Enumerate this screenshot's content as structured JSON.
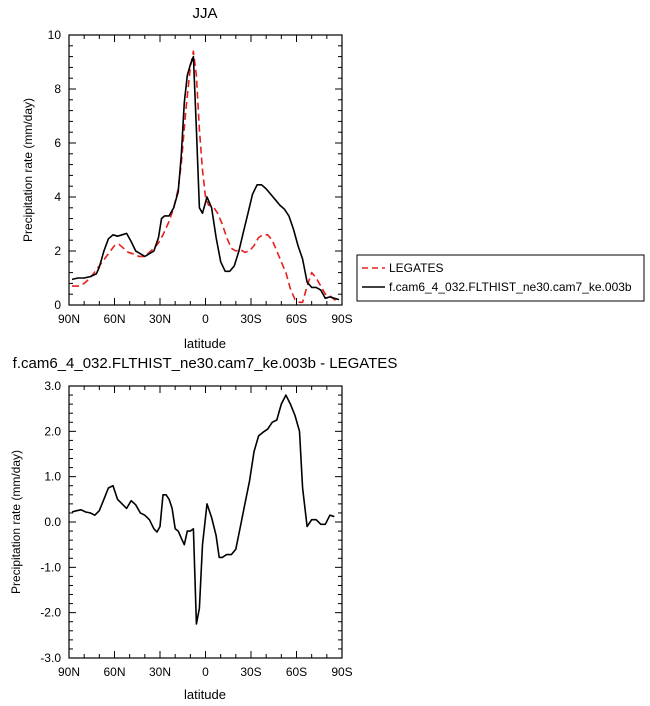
{
  "chart_data": [
    {
      "type": "line",
      "title": "JJA",
      "xlabel": "latitude",
      "ylabel": "Precipitation rate (mm/day)",
      "xlim": [
        -90,
        90
      ],
      "ylim": [
        0,
        10
      ],
      "x_ticks": [
        -90,
        -60,
        -30,
        0,
        30,
        60,
        90
      ],
      "x_tick_labels": [
        "90N",
        "60N",
        "30N",
        "0",
        "30S",
        "60S",
        "90S"
      ],
      "y_ticks": [
        0,
        2,
        4,
        6,
        8,
        10
      ],
      "y_tick_labels": [
        "0",
        "2",
        "4",
        "6",
        "8",
        "10"
      ],
      "legend_position": "right",
      "series": [
        {
          "name": "LEGATES",
          "color": "#e8201c",
          "dash": "dashed",
          "points": [
            [
              -88,
              0.7
            ],
            [
              -84,
              0.7
            ],
            [
              -80,
              0.8
            ],
            [
              -76,
              1.0
            ],
            [
              -72,
              1.3
            ],
            [
              -68,
              1.6
            ],
            [
              -64,
              1.9
            ],
            [
              -60,
              2.2
            ],
            [
              -57,
              2.25
            ],
            [
              -54,
              2.1
            ],
            [
              -51,
              1.95
            ],
            [
              -48,
              1.9
            ],
            [
              -44,
              1.8
            ],
            [
              -40,
              1.8
            ],
            [
              -37,
              1.95
            ],
            [
              -34,
              2.1
            ],
            [
              -31,
              2.3
            ],
            [
              -28,
              2.6
            ],
            [
              -24,
              3.1
            ],
            [
              -21,
              3.6
            ],
            [
              -18,
              4.3
            ],
            [
              -16,
              5.2
            ],
            [
              -13,
              7.2
            ],
            [
              -10,
              8.8
            ],
            [
              -8,
              9.4
            ],
            [
              -6,
              8.5
            ],
            [
              -4,
              6.5
            ],
            [
              -2,
              5.0
            ],
            [
              0,
              4.0
            ],
            [
              2,
              3.7
            ],
            [
              5,
              3.65
            ],
            [
              8,
              3.4
            ],
            [
              11,
              3.0
            ],
            [
              14,
              2.5
            ],
            [
              17,
              2.1
            ],
            [
              20,
              2.0
            ],
            [
              23,
              2.05
            ],
            [
              26,
              1.95
            ],
            [
              29,
              2.0
            ],
            [
              32,
              2.2
            ],
            [
              35,
              2.5
            ],
            [
              38,
              2.6
            ],
            [
              41,
              2.6
            ],
            [
              44,
              2.4
            ],
            [
              47,
              2.0
            ],
            [
              50,
              1.6
            ],
            [
              53,
              1.2
            ],
            [
              56,
              0.6
            ],
            [
              59,
              0.2
            ],
            [
              62,
              0.1
            ],
            [
              64,
              0.1
            ],
            [
              67,
              0.7
            ],
            [
              70,
              1.2
            ],
            [
              73,
              1.0
            ],
            [
              76,
              0.7
            ],
            [
              79,
              0.4
            ],
            [
              82,
              0.35
            ],
            [
              85,
              0.2
            ],
            [
              88,
              0.1
            ]
          ]
        },
        {
          "name": "f.cam6_4_032.FLTHIST_ne30.cam7_ke.003b",
          "color": "#000000",
          "dash": "solid",
          "points": [
            [
              -88,
              0.95
            ],
            [
              -84,
              1.0
            ],
            [
              -80,
              1.0
            ],
            [
              -76,
              1.05
            ],
            [
              -72,
              1.15
            ],
            [
              -70,
              1.4
            ],
            [
              -67,
              2.0
            ],
            [
              -64,
              2.45
            ],
            [
              -61,
              2.6
            ],
            [
              -58,
              2.55
            ],
            [
              -55,
              2.6
            ],
            [
              -52,
              2.65
            ],
            [
              -49,
              2.35
            ],
            [
              -46,
              2.0
            ],
            [
              -43,
              1.9
            ],
            [
              -40,
              1.8
            ],
            [
              -37,
              1.9
            ],
            [
              -34,
              2.0
            ],
            [
              -31,
              2.5
            ],
            [
              -29,
              3.2
            ],
            [
              -27,
              3.3
            ],
            [
              -24,
              3.3
            ],
            [
              -21,
              3.6
            ],
            [
              -18,
              4.2
            ],
            [
              -16,
              5.5
            ],
            [
              -14,
              7.5
            ],
            [
              -12,
              8.5
            ],
            [
              -10,
              8.9
            ],
            [
              -8,
              9.2
            ],
            [
              -6,
              6.5
            ],
            [
              -4,
              3.6
            ],
            [
              -2,
              3.4
            ],
            [
              1,
              4.0
            ],
            [
              4,
              3.6
            ],
            [
              7,
              2.5
            ],
            [
              10,
              1.6
            ],
            [
              13,
              1.25
            ],
            [
              16,
              1.25
            ],
            [
              19,
              1.45
            ],
            [
              22,
              2.0
            ],
            [
              25,
              2.7
            ],
            [
              28,
              3.4
            ],
            [
              31,
              4.1
            ],
            [
              34,
              4.45
            ],
            [
              37,
              4.45
            ],
            [
              40,
              4.3
            ],
            [
              43,
              4.1
            ],
            [
              46,
              3.9
            ],
            [
              49,
              3.7
            ],
            [
              52,
              3.55
            ],
            [
              55,
              3.3
            ],
            [
              58,
              2.8
            ],
            [
              61,
              2.2
            ],
            [
              64,
              1.7
            ],
            [
              67,
              0.85
            ],
            [
              70,
              0.65
            ],
            [
              73,
              0.65
            ],
            [
              76,
              0.55
            ],
            [
              79,
              0.25
            ],
            [
              82,
              0.3
            ],
            [
              85,
              0.25
            ],
            [
              88,
              0.2
            ]
          ]
        }
      ]
    },
    {
      "type": "line",
      "title": "f.cam6_4_032.FLTHIST_ne30.cam7_ke.003b - LEGATES",
      "xlabel": "latitude",
      "ylabel": "Precipitation rate (mm/day)",
      "xlim": [
        -90,
        90
      ],
      "ylim": [
        -3,
        3
      ],
      "x_ticks": [
        -90,
        -60,
        -30,
        0,
        30,
        60,
        90
      ],
      "x_tick_labels": [
        "90N",
        "60N",
        "30N",
        "0",
        "30S",
        "60S",
        "90S"
      ],
      "y_ticks": [
        -3,
        -2,
        -1,
        0,
        1,
        2,
        3
      ],
      "y_tick_labels": [
        "-3.0",
        "-2.0",
        "-1.0",
        "0.0",
        "1.0",
        "2.0",
        "3.0"
      ],
      "series": [
        {
          "color": "#000000",
          "dash": "solid",
          "points": [
            [
              -88,
              0.22
            ],
            [
              -85,
              0.25
            ],
            [
              -82,
              0.27
            ],
            [
              -79,
              0.22
            ],
            [
              -76,
              0.2
            ],
            [
              -73,
              0.15
            ],
            [
              -70,
              0.25
            ],
            [
              -67,
              0.5
            ],
            [
              -64,
              0.75
            ],
            [
              -61,
              0.8
            ],
            [
              -58,
              0.5
            ],
            [
              -55,
              0.4
            ],
            [
              -52,
              0.3
            ],
            [
              -49,
              0.47
            ],
            [
              -46,
              0.38
            ],
            [
              -43,
              0.2
            ],
            [
              -40,
              0.15
            ],
            [
              -37,
              0.05
            ],
            [
              -34,
              -0.15
            ],
            [
              -32,
              -0.22
            ],
            [
              -30,
              -0.1
            ],
            [
              -28,
              0.6
            ],
            [
              -26,
              0.6
            ],
            [
              -24,
              0.5
            ],
            [
              -22,
              0.3
            ],
            [
              -20,
              -0.15
            ],
            [
              -18,
              -0.2
            ],
            [
              -16,
              -0.35
            ],
            [
              -14,
              -0.5
            ],
            [
              -12,
              -0.2
            ],
            [
              -10,
              -0.2
            ],
            [
              -8,
              -0.15
            ],
            [
              -6,
              -2.25
            ],
            [
              -4,
              -1.9
            ],
            [
              -2,
              -0.5
            ],
            [
              1,
              0.4
            ],
            [
              4,
              0.1
            ],
            [
              7,
              -0.3
            ],
            [
              9,
              -0.78
            ],
            [
              11,
              -0.78
            ],
            [
              14,
              -0.72
            ],
            [
              17,
              -0.72
            ],
            [
              20,
              -0.6
            ],
            [
              23,
              -0.1
            ],
            [
              26,
              0.4
            ],
            [
              29,
              0.9
            ],
            [
              32,
              1.55
            ],
            [
              35,
              1.9
            ],
            [
              38,
              1.98
            ],
            [
              41,
              2.05
            ],
            [
              44,
              2.2
            ],
            [
              47,
              2.25
            ],
            [
              50,
              2.6
            ],
            [
              53,
              2.8
            ],
            [
              56,
              2.6
            ],
            [
              59,
              2.35
            ],
            [
              62,
              2.0
            ],
            [
              64,
              0.75
            ],
            [
              67,
              -0.1
            ],
            [
              70,
              0.05
            ],
            [
              73,
              0.05
            ],
            [
              76,
              -0.05
            ],
            [
              79,
              -0.05
            ],
            [
              82,
              0.15
            ],
            [
              85,
              0.12
            ]
          ]
        }
      ]
    }
  ]
}
